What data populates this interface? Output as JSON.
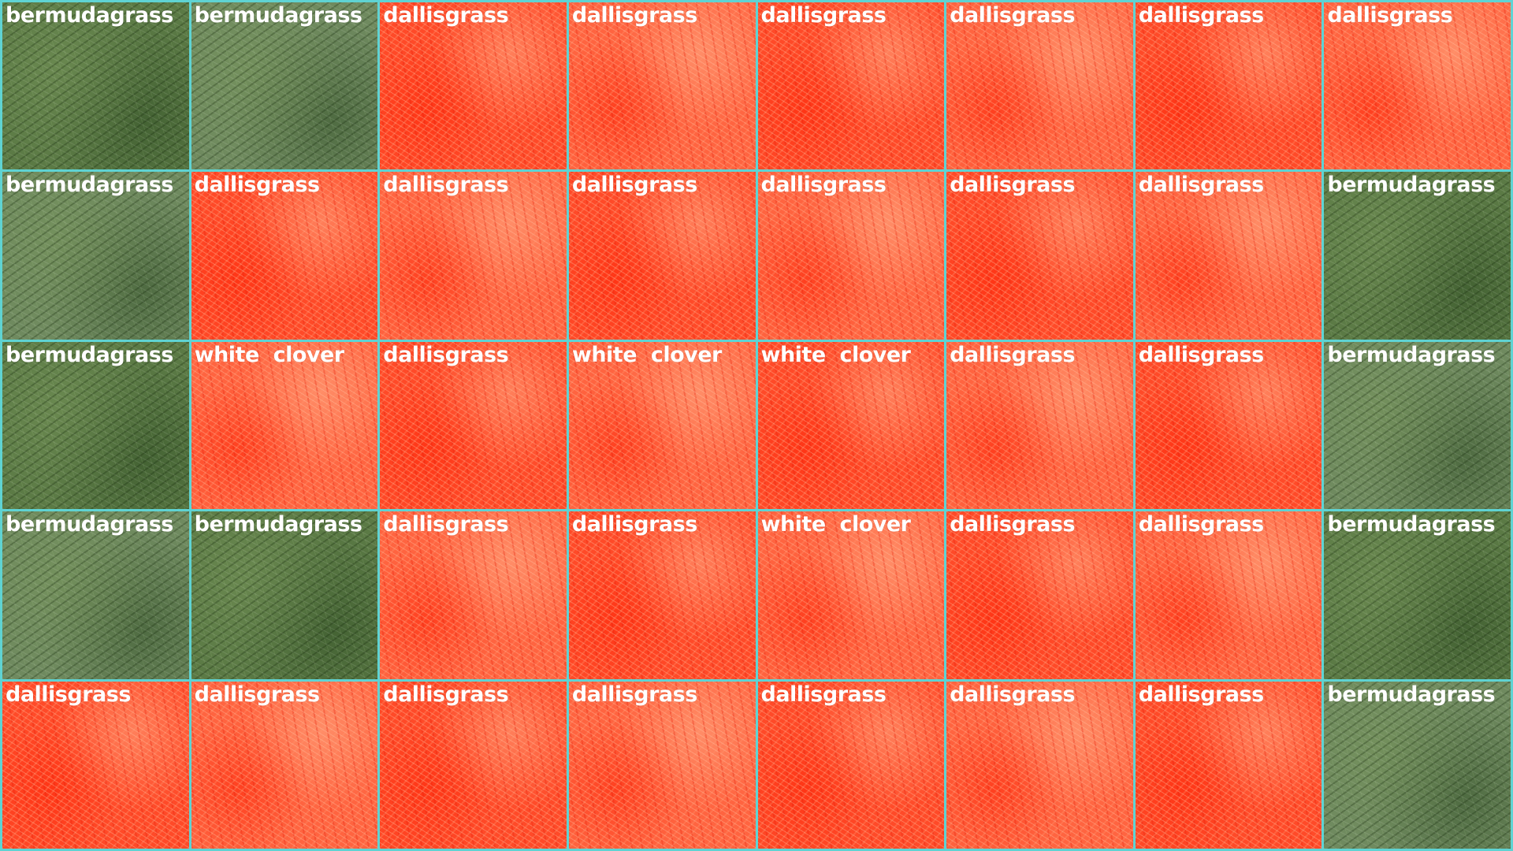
{
  "grid": {
    "columns": 8,
    "rows": 5,
    "border_color": "#5fd3d3",
    "label_color": "#ffffff",
    "class_colors": {
      "bermudagrass": "natural-green",
      "dallisgrass": "#ff4a28",
      "white clover": "#ff4a28"
    },
    "tiles": [
      {
        "label": "bermudagrass",
        "tint": "green"
      },
      {
        "label": "bermudagrass",
        "tint": "green"
      },
      {
        "label": "dallisgrass",
        "tint": "red"
      },
      {
        "label": "dallisgrass",
        "tint": "red"
      },
      {
        "label": "dallisgrass",
        "tint": "red"
      },
      {
        "label": "dallisgrass",
        "tint": "red"
      },
      {
        "label": "dallisgrass",
        "tint": "red"
      },
      {
        "label": "dallisgrass",
        "tint": "red"
      },
      {
        "label": "bermudagrass",
        "tint": "green"
      },
      {
        "label": "dallisgrass",
        "tint": "red"
      },
      {
        "label": "dallisgrass",
        "tint": "red"
      },
      {
        "label": "dallisgrass",
        "tint": "red"
      },
      {
        "label": "dallisgrass",
        "tint": "red"
      },
      {
        "label": "dallisgrass",
        "tint": "red"
      },
      {
        "label": "dallisgrass",
        "tint": "red"
      },
      {
        "label": "bermudagrass",
        "tint": "green"
      },
      {
        "label": "bermudagrass",
        "tint": "green"
      },
      {
        "label": "white  clover",
        "tint": "red"
      },
      {
        "label": "dallisgrass",
        "tint": "red"
      },
      {
        "label": "white  clover",
        "tint": "red"
      },
      {
        "label": "white  clover",
        "tint": "red"
      },
      {
        "label": "dallisgrass",
        "tint": "red"
      },
      {
        "label": "dallisgrass",
        "tint": "red"
      },
      {
        "label": "bermudagrass",
        "tint": "green"
      },
      {
        "label": "bermudagrass",
        "tint": "green"
      },
      {
        "label": "bermudagrass",
        "tint": "green"
      },
      {
        "label": "dallisgrass",
        "tint": "red"
      },
      {
        "label": "dallisgrass",
        "tint": "red"
      },
      {
        "label": "white  clover",
        "tint": "red"
      },
      {
        "label": "dallisgrass",
        "tint": "red"
      },
      {
        "label": "dallisgrass",
        "tint": "red"
      },
      {
        "label": "bermudagrass",
        "tint": "green"
      },
      {
        "label": "dallisgrass",
        "tint": "red"
      },
      {
        "label": "dallisgrass",
        "tint": "red"
      },
      {
        "label": "dallisgrass",
        "tint": "red"
      },
      {
        "label": "dallisgrass",
        "tint": "red"
      },
      {
        "label": "dallisgrass",
        "tint": "red"
      },
      {
        "label": "dallisgrass",
        "tint": "red"
      },
      {
        "label": "dallisgrass",
        "tint": "red"
      },
      {
        "label": "bermudagrass",
        "tint": "green"
      }
    ]
  }
}
